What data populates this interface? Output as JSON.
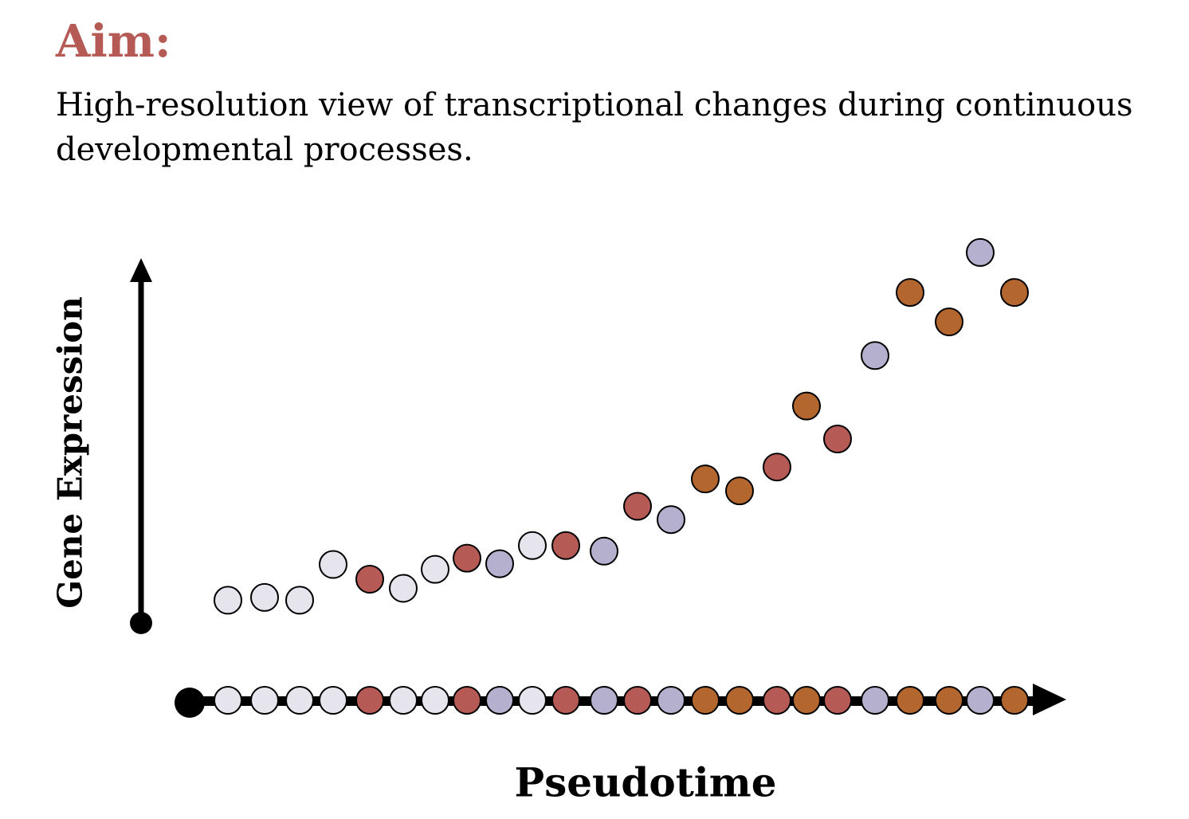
{
  "title": "Aim:",
  "description": "High-resolution view of transcriptional changes during continuous developmental processes.",
  "colors": {
    "title": "#b65a55",
    "grey": "#e6e5ee",
    "red": "#b65a55",
    "purple": "#b6b0cf",
    "orange": "#b3672e",
    "axis": "#000000"
  },
  "chart_data": {
    "type": "scatter",
    "xlabel": "Pseudotime",
    "ylabel": "Gene Expression",
    "points": [
      {
        "x": 1,
        "y": 0.7,
        "color": "grey"
      },
      {
        "x": 2,
        "y": 0.74,
        "color": "grey"
      },
      {
        "x": 3,
        "y": 0.7,
        "color": "grey"
      },
      {
        "x": 4,
        "y": 1.21,
        "color": "grey"
      },
      {
        "x": 5,
        "y": 1.0,
        "color": "red"
      },
      {
        "x": 6,
        "y": 0.87,
        "color": "grey"
      },
      {
        "x": 7,
        "y": 1.14,
        "color": "grey"
      },
      {
        "x": 8,
        "y": 1.3,
        "color": "red"
      },
      {
        "x": 9,
        "y": 1.22,
        "color": "purple"
      },
      {
        "x": 10,
        "y": 1.48,
        "color": "grey"
      },
      {
        "x": 11,
        "y": 1.48,
        "color": "red"
      },
      {
        "x": 12,
        "y": 1.4,
        "color": "purple"
      },
      {
        "x": 13,
        "y": 2.04,
        "color": "red"
      },
      {
        "x": 14,
        "y": 1.85,
        "color": "purple"
      },
      {
        "x": 15,
        "y": 2.43,
        "color": "orange"
      },
      {
        "x": 16,
        "y": 2.26,
        "color": "orange"
      },
      {
        "x": 17,
        "y": 2.6,
        "color": "red"
      },
      {
        "x": 18,
        "y": 3.47,
        "color": "orange"
      },
      {
        "x": 19,
        "y": 3.0,
        "color": "red"
      },
      {
        "x": 20,
        "y": 4.19,
        "color": "purple"
      },
      {
        "x": 21,
        "y": 5.09,
        "color": "orange"
      },
      {
        "x": 22,
        "y": 4.67,
        "color": "orange"
      },
      {
        "x": 23,
        "y": 5.66,
        "color": "purple"
      },
      {
        "x": 24,
        "y": 5.09,
        "color": "orange"
      }
    ]
  }
}
